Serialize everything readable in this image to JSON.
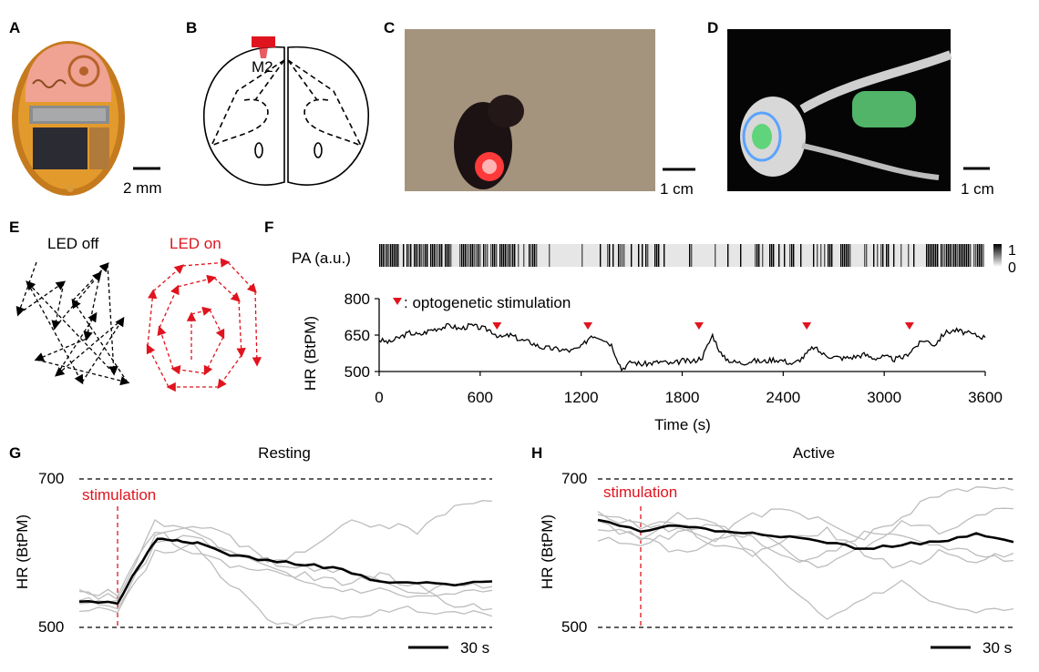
{
  "panels": {
    "A": {
      "letter": "A",
      "scale": "2 mm"
    },
    "B": {
      "letter": "B",
      "region": "M2"
    },
    "C": {
      "letter": "C",
      "scale": "1 cm"
    },
    "D": {
      "letter": "D",
      "scale": "1 cm"
    },
    "E": {
      "letter": "E",
      "off_label": "LED off",
      "on_label": "LED on"
    },
    "F": {
      "letter": "F",
      "pa_label": "PA (a.u.)",
      "pa_max": "1",
      "pa_min": "0",
      "ylabel": "HR (BtPM)",
      "xlabel": "Time (s)",
      "legend": ": optogenetic stimulation"
    },
    "G": {
      "letter": "G",
      "title": "Resting",
      "ylabel": "HR (BtPM)",
      "stim_label": "stimulation",
      "y_top": "700",
      "y_bottom": "500",
      "scale": "30 s"
    },
    "H": {
      "letter": "H",
      "title": "Active",
      "ylabel": "HR (BtPM)",
      "stim_label": "stimulation",
      "y_top": "700",
      "y_bottom": "500",
      "scale": "30 s"
    }
  },
  "colors": {
    "accent": "#e0141e",
    "grey": "#bdbdbd",
    "black": "#000000"
  },
  "chart_data": [
    {
      "type": "line",
      "panel": "F",
      "title": "",
      "xlabel": "Time (s)",
      "ylabel": "HR (BtPM)",
      "xlim": [
        0,
        3600
      ],
      "ylim": [
        500,
        800
      ],
      "xticks": [
        "0",
        "600",
        "1200",
        "1800",
        "2400",
        "3000",
        "3600"
      ],
      "yticks": [
        "500",
        "650",
        "800"
      ],
      "stimulation_times": [
        700,
        1240,
        1900,
        2540,
        3150
      ],
      "x": [
        0,
        60,
        120,
        180,
        240,
        300,
        360,
        420,
        480,
        540,
        600,
        660,
        720,
        780,
        840,
        900,
        960,
        1020,
        1080,
        1140,
        1200,
        1260,
        1320,
        1380,
        1440,
        1500,
        1560,
        1620,
        1680,
        1740,
        1800,
        1860,
        1920,
        1980,
        2040,
        2100,
        2160,
        2220,
        2280,
        2340,
        2400,
        2460,
        2520,
        2580,
        2640,
        2700,
        2760,
        2820,
        2880,
        2940,
        3000,
        3060,
        3120,
        3180,
        3240,
        3300,
        3360,
        3420,
        3480,
        3540,
        3600
      ],
      "values": [
        630,
        620,
        640,
        660,
        650,
        670,
        680,
        690,
        675,
        690,
        680,
        670,
        640,
        650,
        630,
        620,
        600,
        595,
        590,
        585,
        600,
        650,
        640,
        610,
        510,
        540,
        530,
        535,
        540,
        530,
        545,
        540,
        560,
        650,
        560,
        540,
        535,
        545,
        540,
        550,
        545,
        530,
        560,
        600,
        570,
        560,
        555,
        560,
        570,
        555,
        560,
        550,
        560,
        600,
        630,
        610,
        660,
        670,
        660,
        650,
        640
      ]
    },
    {
      "type": "line",
      "panel": "G",
      "title": "Resting",
      "ylabel": "HR (BtPM)",
      "ylim": [
        500,
        700
      ],
      "xlim": [
        -15,
        150
      ],
      "stimulation_time": 0,
      "series": [
        {
          "name": "mean",
          "x": [
            -15,
            0,
            8,
            16,
            24,
            32,
            45,
            60,
            75,
            90,
            105,
            120,
            135,
            150
          ],
          "values": [
            535,
            533,
            580,
            620,
            618,
            614,
            598,
            590,
            585,
            578,
            560,
            560,
            557,
            562
          ]
        },
        {
          "name": "trial 1",
          "x": [
            -15,
            0,
            15,
            30,
            45,
            60,
            75,
            90,
            105,
            120,
            135,
            150
          ],
          "values": [
            545,
            540,
            640,
            630,
            600,
            580,
            560,
            550,
            550,
            540,
            545,
            550
          ]
        },
        {
          "name": "trial 2",
          "x": [
            -15,
            0,
            15,
            30,
            45,
            60,
            75,
            90,
            105,
            120,
            135,
            150
          ],
          "values": [
            530,
            535,
            620,
            640,
            620,
            590,
            600,
            640,
            640,
            630,
            665,
            670
          ]
        },
        {
          "name": "trial 3",
          "x": [
            -15,
            0,
            15,
            30,
            45,
            60,
            75,
            90,
            105,
            120,
            135,
            150
          ],
          "values": [
            520,
            525,
            600,
            610,
            560,
            510,
            505,
            515,
            520,
            525,
            520,
            515
          ]
        },
        {
          "name": "trial 4",
          "x": [
            -15,
            0,
            15,
            30,
            45,
            60,
            75,
            90,
            105,
            120,
            135,
            150
          ],
          "values": [
            550,
            545,
            630,
            600,
            585,
            575,
            570,
            560,
            570,
            555,
            530,
            525
          ]
        },
        {
          "name": "trial 5",
          "x": [
            -15,
            0,
            15,
            30,
            45,
            60,
            75,
            90,
            105,
            120,
            135,
            150
          ],
          "values": [
            540,
            530,
            610,
            625,
            600,
            590,
            580,
            575,
            560,
            545,
            560,
            555
          ]
        }
      ]
    },
    {
      "type": "line",
      "panel": "H",
      "title": "Active",
      "ylabel": "HR (BtPM)",
      "ylim": [
        500,
        700
      ],
      "xlim": [
        -15,
        150
      ],
      "stimulation_time": 0,
      "series": [
        {
          "name": "mean",
          "x": [
            -15,
            0,
            15,
            30,
            45,
            60,
            75,
            90,
            105,
            120,
            135,
            150
          ],
          "values": [
            645,
            630,
            638,
            630,
            628,
            622,
            615,
            605,
            612,
            615,
            625,
            615
          ]
        },
        {
          "name": "trial 1",
          "x": [
            -15,
            0,
            15,
            30,
            45,
            60,
            75,
            90,
            105,
            120,
            135,
            150
          ],
          "values": [
            640,
            620,
            650,
            640,
            600,
            550,
            510,
            540,
            560,
            530,
            520,
            525
          ]
        },
        {
          "name": "trial 2",
          "x": [
            -15,
            0,
            15,
            30,
            45,
            60,
            75,
            90,
            105,
            120,
            135,
            150
          ],
          "values": [
            650,
            640,
            630,
            620,
            650,
            660,
            640,
            620,
            650,
            680,
            690,
            685
          ]
        },
        {
          "name": "trial 3",
          "x": [
            -15,
            0,
            15,
            30,
            45,
            60,
            75,
            90,
            105,
            120,
            135,
            150
          ],
          "values": [
            630,
            625,
            600,
            615,
            630,
            600,
            580,
            610,
            640,
            630,
            650,
            660
          ]
        },
        {
          "name": "trial 4",
          "x": [
            -15,
            0,
            15,
            30,
            45,
            60,
            75,
            90,
            105,
            120,
            135,
            150
          ],
          "values": [
            655,
            635,
            640,
            610,
            600,
            620,
            630,
            600,
            580,
            600,
            590,
            600
          ]
        },
        {
          "name": "trial 5",
          "x": [
            -15,
            0,
            15,
            30,
            45,
            60,
            75,
            90,
            105,
            120,
            135,
            150
          ],
          "values": [
            620,
            615,
            625,
            640,
            620,
            590,
            600,
            625,
            620,
            610,
            600,
            590
          ]
        }
      ]
    }
  ]
}
